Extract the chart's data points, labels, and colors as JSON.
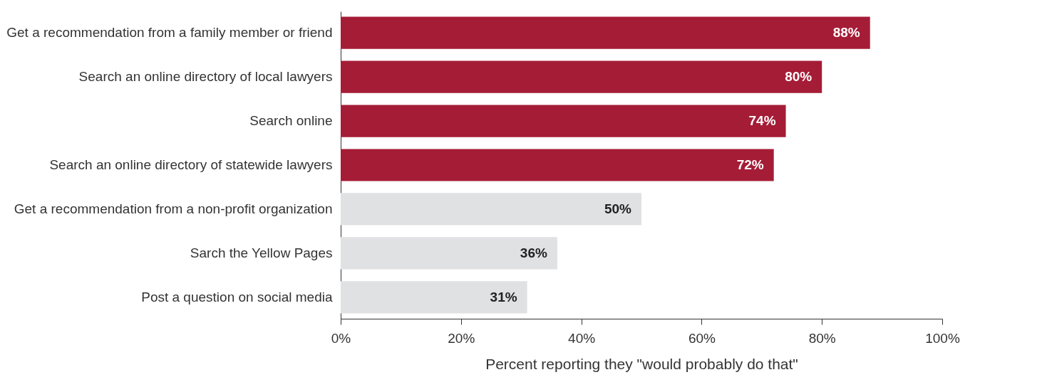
{
  "chart_data": {
    "type": "bar",
    "orientation": "horizontal",
    "categories": [
      "Get a recommendation from a family member or friend",
      "Search an online directory of local lawyers",
      "Search online",
      "Search an online directory of statewide lawyers",
      "Get a recommendation from a non-profit organization",
      "Sarch the Yellow Pages",
      "Post a question on social media"
    ],
    "values": [
      88,
      80,
      74,
      72,
      50,
      36,
      31
    ],
    "colors": [
      "#a51c36",
      "#a51c36",
      "#a51c36",
      "#a51c36",
      "#e0e1e3",
      "#e0e1e3",
      "#e0e1e3"
    ],
    "value_labels": [
      "88%",
      "80%",
      "74%",
      "72%",
      "50%",
      "36%",
      "31%"
    ],
    "xlim": [
      0,
      100
    ],
    "xticks": [
      {
        "value": 0,
        "label": "0%"
      },
      {
        "value": 20,
        "label": "20%"
      },
      {
        "value": 40,
        "label": "40%"
      },
      {
        "value": 60,
        "label": "60%"
      },
      {
        "value": 80,
        "label": "80%"
      },
      {
        "value": 100,
        "label": "100%"
      }
    ],
    "xlabel": "Percent reporting they \"would probably do that\"",
    "grid": false
  }
}
